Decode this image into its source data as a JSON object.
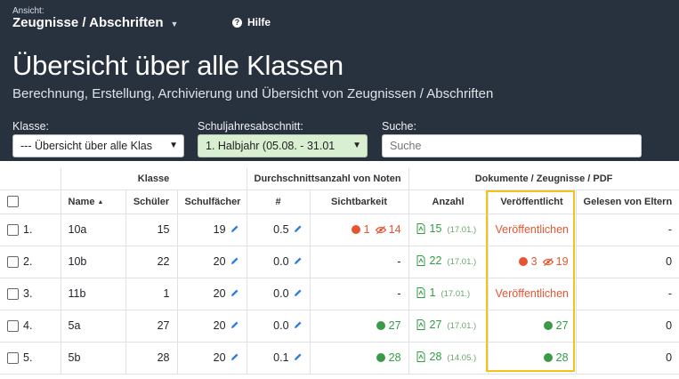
{
  "header": {
    "view_caption": "Ansicht:",
    "view_value": "Zeugnisse / Abschriften",
    "help_label": "Hilfe",
    "title": "Übersicht über alle Klassen",
    "subtitle": "Berechnung, Erstellung, Archivierung und Übersicht von Zeugnissen / Abschriften"
  },
  "filters": {
    "klasse_label": "Klasse:",
    "klasse_value": "--- Übersicht über alle Klas",
    "abschnitt_label": "Schuljahresabschnitt:",
    "abschnitt_value": "1. Halbjahr (05.08. - 31.01",
    "suche_label": "Suche:",
    "suche_placeholder": "Suche"
  },
  "table": {
    "groups": {
      "klasse": "Klasse",
      "durchschnitt": "Durchschnittsanzahl von Noten",
      "dokumente": "Dokumente / Zeugnisse / PDF"
    },
    "columns": {
      "name": "Name",
      "schueler": "Schüler",
      "schulfaecher": "Schulfächer",
      "hash": "#",
      "sichtbarkeit": "Sichtbarkeit",
      "anzahl": "Anzahl",
      "veroeffentlicht": "Veröffentlicht",
      "gelesen": "Gelesen von Eltern"
    },
    "rows": [
      {
        "num": "1.",
        "name": "10a",
        "schueler": "15",
        "faecher": "19",
        "avg": "0.5",
        "sicht_red": "1",
        "sicht_eye": "14",
        "sicht_green": "",
        "sicht_dash": "",
        "anzahl": "15",
        "anzahl_date": "(17.01.)",
        "veroeff_link": "Veröffentlichen",
        "veroeff_red": "",
        "veroeff_eye": "",
        "veroeff_green": "",
        "gelesen": "-"
      },
      {
        "num": "2.",
        "name": "10b",
        "schueler": "22",
        "faecher": "20",
        "avg": "0.0",
        "sicht_red": "",
        "sicht_eye": "",
        "sicht_green": "",
        "sicht_dash": "-",
        "anzahl": "22",
        "anzahl_date": "(17.01.)",
        "veroeff_link": "",
        "veroeff_red": "3",
        "veroeff_eye": "19",
        "veroeff_green": "",
        "gelesen": "0"
      },
      {
        "num": "3.",
        "name": "11b",
        "schueler": "1",
        "faecher": "20",
        "avg": "0.0",
        "sicht_red": "",
        "sicht_eye": "",
        "sicht_green": "",
        "sicht_dash": "-",
        "anzahl": "1",
        "anzahl_date": "(17.01.)",
        "veroeff_link": "Veröffentlichen",
        "veroeff_red": "",
        "veroeff_eye": "",
        "veroeff_green": "",
        "gelesen": "-"
      },
      {
        "num": "4.",
        "name": "5a",
        "schueler": "27",
        "faecher": "20",
        "avg": "0.0",
        "sicht_red": "",
        "sicht_eye": "",
        "sicht_green": "27",
        "sicht_dash": "",
        "anzahl": "27",
        "anzahl_date": "(17.01.)",
        "veroeff_link": "",
        "veroeff_red": "",
        "veroeff_eye": "",
        "veroeff_green": "27",
        "gelesen": "0"
      },
      {
        "num": "5.",
        "name": "5b",
        "schueler": "28",
        "faecher": "20",
        "avg": "0.1",
        "sicht_red": "",
        "sicht_eye": "",
        "sicht_green": "28",
        "sicht_dash": "",
        "anzahl": "28",
        "anzahl_date": "(14.05.)",
        "veroeff_link": "",
        "veroeff_red": "",
        "veroeff_eye": "",
        "veroeff_green": "28",
        "gelesen": "0"
      }
    ]
  },
  "colors": {
    "header_bg": "#28323f",
    "accent_red": "#e8542f",
    "accent_green": "#2f9e44",
    "highlight": "#f2c318"
  }
}
